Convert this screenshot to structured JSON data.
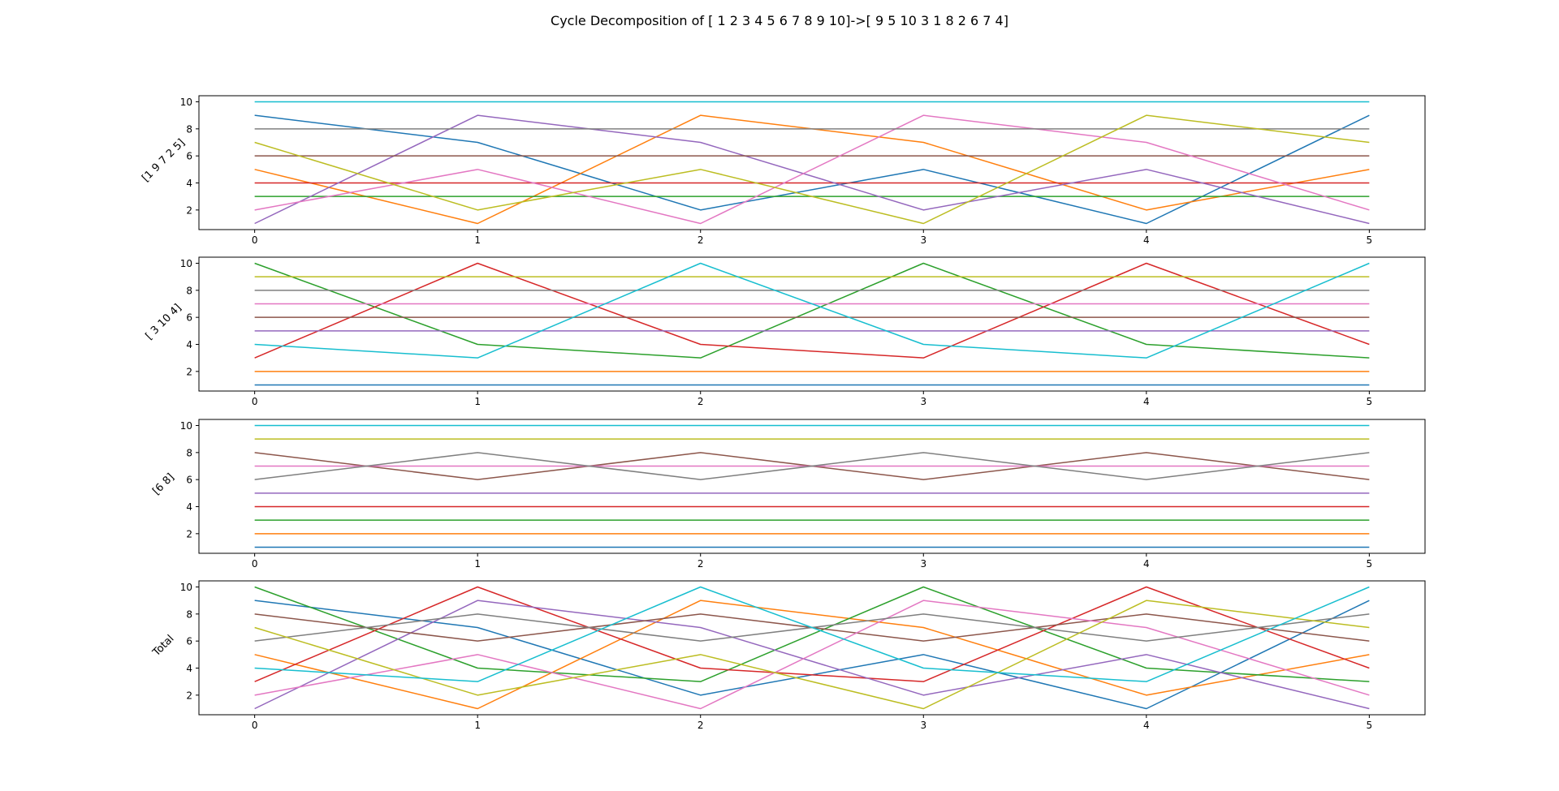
{
  "title": "Cycle Decomposition of [ 1  2  3  4  5  6  7  8  9 10]->[ 9  5 10  3  1  8  2  6  7  4]",
  "colors": [
    "#1f77b4",
    "#ff7f0e",
    "#2ca02c",
    "#d62728",
    "#9467bd",
    "#8c564b",
    "#e377c2",
    "#7f7f7f",
    "#bcbd22",
    "#17becf"
  ],
  "chart_data": [
    {
      "type": "line",
      "ylabel": "[1 9 7 2 5]",
      "x": [
        0,
        1,
        2,
        3,
        4,
        5
      ],
      "xlim": [
        -0.25,
        5.25
      ],
      "ylim": [
        0.55,
        10.45
      ],
      "xticks": [
        0,
        1,
        2,
        3,
        4,
        5
      ],
      "yticks": [
        2,
        4,
        6,
        8,
        10
      ],
      "grid": false,
      "series": [
        {
          "values": [
            9,
            7,
            2,
            5,
            1,
            9
          ]
        },
        {
          "values": [
            5,
            1,
            9,
            7,
            2,
            5
          ]
        },
        {
          "values": [
            3,
            3,
            3,
            3,
            3,
            3
          ]
        },
        {
          "values": [
            4,
            4,
            4,
            4,
            4,
            4
          ]
        },
        {
          "values": [
            1,
            9,
            7,
            2,
            5,
            1
          ]
        },
        {
          "values": [
            6,
            6,
            6,
            6,
            6,
            6
          ]
        },
        {
          "values": [
            2,
            5,
            1,
            9,
            7,
            2
          ]
        },
        {
          "values": [
            8,
            8,
            8,
            8,
            8,
            8
          ]
        },
        {
          "values": [
            7,
            2,
            5,
            1,
            9,
            7
          ]
        },
        {
          "values": [
            10,
            10,
            10,
            10,
            10,
            10
          ]
        }
      ]
    },
    {
      "type": "line",
      "ylabel": "[ 3 10  4]",
      "x": [
        0,
        1,
        2,
        3,
        4,
        5
      ],
      "xlim": [
        -0.25,
        5.25
      ],
      "ylim": [
        0.55,
        10.45
      ],
      "xticks": [
        0,
        1,
        2,
        3,
        4,
        5
      ],
      "yticks": [
        2,
        4,
        6,
        8,
        10
      ],
      "grid": false,
      "series": [
        {
          "values": [
            1,
            1,
            1,
            1,
            1,
            1
          ]
        },
        {
          "values": [
            2,
            2,
            2,
            2,
            2,
            2
          ]
        },
        {
          "values": [
            10,
            4,
            3,
            10,
            4,
            3
          ]
        },
        {
          "values": [
            3,
            10,
            4,
            3,
            10,
            4
          ]
        },
        {
          "values": [
            5,
            5,
            5,
            5,
            5,
            5
          ]
        },
        {
          "values": [
            6,
            6,
            6,
            6,
            6,
            6
          ]
        },
        {
          "values": [
            7,
            7,
            7,
            7,
            7,
            7
          ]
        },
        {
          "values": [
            8,
            8,
            8,
            8,
            8,
            8
          ]
        },
        {
          "values": [
            9,
            9,
            9,
            9,
            9,
            9
          ]
        },
        {
          "values": [
            4,
            3,
            10,
            4,
            3,
            10
          ]
        }
      ]
    },
    {
      "type": "line",
      "ylabel": "[6 8]",
      "x": [
        0,
        1,
        2,
        3,
        4,
        5
      ],
      "xlim": [
        -0.25,
        5.25
      ],
      "ylim": [
        0.55,
        10.45
      ],
      "xticks": [
        0,
        1,
        2,
        3,
        4,
        5
      ],
      "yticks": [
        2,
        4,
        6,
        8,
        10
      ],
      "grid": false,
      "series": [
        {
          "values": [
            1,
            1,
            1,
            1,
            1,
            1
          ]
        },
        {
          "values": [
            2,
            2,
            2,
            2,
            2,
            2
          ]
        },
        {
          "values": [
            3,
            3,
            3,
            3,
            3,
            3
          ]
        },
        {
          "values": [
            4,
            4,
            4,
            4,
            4,
            4
          ]
        },
        {
          "values": [
            5,
            5,
            5,
            5,
            5,
            5
          ]
        },
        {
          "values": [
            8,
            6,
            8,
            6,
            8,
            6
          ]
        },
        {
          "values": [
            7,
            7,
            7,
            7,
            7,
            7
          ]
        },
        {
          "values": [
            6,
            8,
            6,
            8,
            6,
            8
          ]
        },
        {
          "values": [
            9,
            9,
            9,
            9,
            9,
            9
          ]
        },
        {
          "values": [
            10,
            10,
            10,
            10,
            10,
            10
          ]
        }
      ]
    },
    {
      "type": "line",
      "ylabel": "Total",
      "x": [
        0,
        1,
        2,
        3,
        4,
        5
      ],
      "xlim": [
        -0.25,
        5.25
      ],
      "ylim": [
        0.55,
        10.45
      ],
      "xticks": [
        0,
        1,
        2,
        3,
        4,
        5
      ],
      "yticks": [
        2,
        4,
        6,
        8,
        10
      ],
      "grid": false,
      "series": [
        {
          "values": [
            9,
            7,
            2,
            5,
            1,
            9
          ]
        },
        {
          "values": [
            5,
            1,
            9,
            7,
            2,
            5
          ]
        },
        {
          "values": [
            10,
            4,
            3,
            10,
            4,
            3
          ]
        },
        {
          "values": [
            3,
            10,
            4,
            3,
            10,
            4
          ]
        },
        {
          "values": [
            1,
            9,
            7,
            2,
            5,
            1
          ]
        },
        {
          "values": [
            8,
            6,
            8,
            6,
            8,
            6
          ]
        },
        {
          "values": [
            2,
            5,
            1,
            9,
            7,
            2
          ]
        },
        {
          "values": [
            6,
            8,
            6,
            8,
            6,
            8
          ]
        },
        {
          "values": [
            7,
            2,
            5,
            1,
            9,
            7
          ]
        },
        {
          "values": [
            4,
            3,
            10,
            4,
            3,
            10
          ]
        }
      ]
    }
  ]
}
